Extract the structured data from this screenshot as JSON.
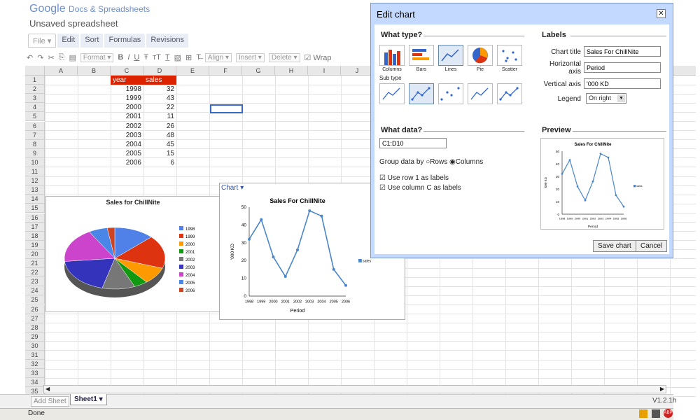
{
  "app": {
    "brand": "Google",
    "product": "Docs & Spreadsheets",
    "doc_title": "Unsaved spreadsheet"
  },
  "menu": [
    "File",
    "Edit",
    "Sort",
    "Formulas",
    "Revisions"
  ],
  "toolbar": {
    "format": "Format",
    "align": "Align",
    "insert": "Insert",
    "delete": "Delete",
    "wrap": "Wrap"
  },
  "columns": [
    "A",
    "B",
    "C",
    "D",
    "E",
    "F",
    "G",
    "H",
    "I",
    "J"
  ],
  "rows": [
    "1",
    "2",
    "3",
    "4",
    "5",
    "6",
    "7",
    "8",
    "9",
    "10",
    "11",
    "12",
    "13",
    "14",
    "15",
    "16",
    "17",
    "18",
    "19",
    "20",
    "21",
    "22",
    "23",
    "24",
    "25",
    "26",
    "27",
    "28",
    "29",
    "30",
    "31",
    "32",
    "33",
    "34",
    "35"
  ],
  "table": {
    "headers": [
      "year",
      "sales"
    ],
    "years": [
      "1998",
      "1999",
      "2000",
      "2001",
      "2002",
      "2003",
      "2004",
      "2005",
      "2006"
    ],
    "sales": [
      "32",
      "43",
      "22",
      "11",
      "26",
      "48",
      "45",
      "15",
      "6"
    ]
  },
  "pie_chart": {
    "title": "Sales for ChillNite",
    "legend": [
      "1998",
      "1999",
      "2000",
      "2001",
      "2002",
      "2003",
      "2004",
      "2005",
      "2006"
    ],
    "colors": [
      "#4f81e8",
      "#dd3311",
      "#ff9900",
      "#119911",
      "#777777",
      "#3333bb",
      "#cc44cc",
      "#4a86e8",
      "#cc4422"
    ]
  },
  "chart_data": {
    "type": "line",
    "title": "Sales For ChillNite",
    "categories": [
      "1998",
      "1999",
      "2000",
      "2001",
      "2002",
      "2003",
      "2004",
      "2005",
      "2006"
    ],
    "series": [
      {
        "name": "sales",
        "values": [
          32,
          43,
          22,
          11,
          26,
          48,
          45,
          15,
          6
        ]
      }
    ],
    "xlabel": "Period",
    "ylabel": "'000 KD",
    "yticks": [
      "0",
      "10",
      "20",
      "30",
      "40",
      "50"
    ],
    "ylim": [
      0,
      50
    ],
    "legend": "right",
    "color": "#4a86c8"
  },
  "chart_menu": "Chart",
  "dialog": {
    "title": "Edit chart",
    "what_type": "What type?",
    "types": [
      "Columns",
      "Bars",
      "Lines",
      "Pie",
      "Scatter"
    ],
    "sub_type": "Sub type",
    "labels_header": "Labels",
    "chart_title_label": "Chart title",
    "chart_title_value": "Sales For ChillNite",
    "horizontal_label": "Horizontal axis",
    "horizontal_value": "Period",
    "vertical_label": "Vertical axis",
    "vertical_value": "'000 KD",
    "legend_label": "Legend",
    "legend_value": "On right",
    "what_data": "What data?",
    "range": "C1:D10",
    "group_by": "Group data by",
    "rows_opt": "Rows",
    "columns_opt": "Columns",
    "use_row": "Use row 1 as labels",
    "use_col": "Use column C as labels",
    "preview": "Preview",
    "preview_title": "Sales For ChillNite",
    "save": "Save chart",
    "cancel": "Cancel"
  },
  "sheet_tab": "Sheet1",
  "add_sheet": "Add Sheet",
  "version": "V1.2.1h",
  "status": "Done"
}
